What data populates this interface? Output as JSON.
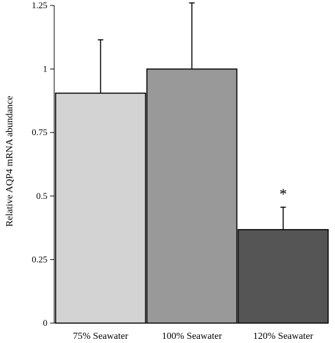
{
  "chart_data": {
    "type": "bar",
    "title": "",
    "xlabel": "",
    "ylabel": "Relative AQP4 mRNA abundance",
    "categories": [
      "75% Seawater",
      "100% Seawater",
      "120% Seawater"
    ],
    "values": [
      0.905,
      1.0,
      0.368
    ],
    "errors": [
      0.21,
      0.26,
      0.088
    ],
    "bar_colors": [
      "#d3d3d3",
      "#999999",
      "#555555"
    ],
    "annotations": [
      "",
      "",
      "*"
    ],
    "ylim": [
      0,
      1.25
    ],
    "yticks": [
      0,
      0.25,
      0.5,
      0.75,
      1,
      1.25
    ],
    "ytick_labels": [
      "0",
      "0.25",
      "0.5",
      "0.75",
      "1",
      "1.25"
    ],
    "grid": false,
    "legend": "none"
  }
}
